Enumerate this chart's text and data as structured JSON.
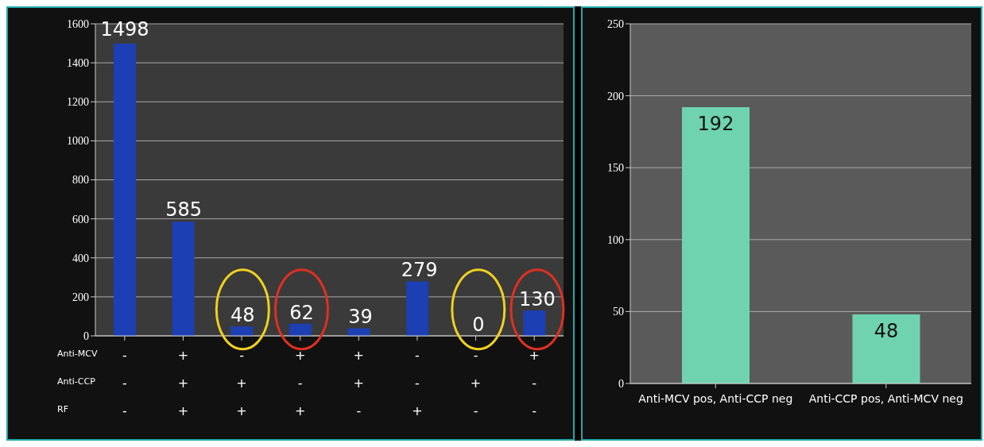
{
  "chart_data": [
    {
      "type": "bar",
      "categories": [
        "-\n-\n-",
        "+\n+\n+",
        "-\n+\n+",
        "+\n-\n+",
        "+\n+\n-",
        "-\n-\n+",
        "-\n+\n-",
        "+\n-\n-"
      ],
      "values": [
        1498,
        585,
        48,
        62,
        39,
        279,
        0,
        130
      ],
      "color": "#1c3fb4",
      "ylim": [
        0,
        1600
      ],
      "yticks": [
        0,
        200,
        400,
        600,
        800,
        1000,
        1200,
        1400,
        1600
      ],
      "grid": "y",
      "data_labels": true,
      "annotations": [
        "Anti-MCV",
        "Anti-CCP",
        "RF"
      ]
    },
    {
      "type": "bar",
      "categories": [
        "Anti-MCV pos, Anti-CCP neg",
        "Anti-CCP pos, Anti-MCV neg"
      ],
      "values": [
        192,
        48
      ],
      "color": "#6fd3b0",
      "ylim": [
        0,
        250
      ],
      "yticks": [
        0,
        50,
        100,
        150,
        200,
        250
      ],
      "grid": "y",
      "data_labels": true
    }
  ]
}
